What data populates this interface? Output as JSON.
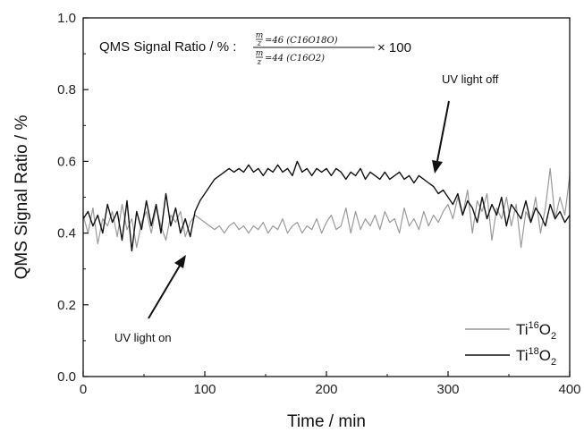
{
  "chart_data": {
    "type": "line",
    "xlabel": "Time / min",
    "ylabel": "QMS Signal Ratio / %",
    "xlim": [
      0,
      400
    ],
    "ylim": [
      0.0,
      1.0
    ],
    "xticks": [
      0,
      100,
      200,
      300,
      400
    ],
    "yticks": [
      0.0,
      0.2,
      0.4,
      0.6,
      0.8,
      1.0
    ],
    "xtick_labels": [
      "0",
      "100",
      "200",
      "300",
      "400"
    ],
    "ytick_labels": [
      "0.0",
      "0.2",
      "0.4",
      "0.6",
      "0.8",
      "1.0"
    ],
    "grid": false,
    "legend_position": "bottom-right",
    "formula": {
      "prefix": "QMS Signal Ratio / % :",
      "num_frac_n": "m",
      "num_frac_d": "z",
      "num_rest": "=46 (C16O18O)",
      "den_frac_n": "m",
      "den_frac_d": "z",
      "den_rest": "=44 (C16O2)",
      "suffix": "× 100"
    },
    "annotations": [
      {
        "text": "UV light on",
        "x": 88,
        "y": 0.34
      },
      {
        "text": "UV light off",
        "x": 289,
        "y": 0.57
      }
    ],
    "series": [
      {
        "name_main": "Ti",
        "name_sup": "16",
        "name_o": "O",
        "name_sub": "2",
        "color": "#9a9a9a",
        "x": [
          0,
          4,
          8,
          12,
          16,
          20,
          24,
          28,
          32,
          36,
          40,
          44,
          48,
          52,
          56,
          60,
          64,
          68,
          72,
          76,
          80,
          84,
          88,
          92,
          96,
          100,
          104,
          108,
          112,
          116,
          120,
          124,
          128,
          132,
          136,
          140,
          144,
          148,
          152,
          156,
          160,
          164,
          168,
          172,
          176,
          180,
          184,
          188,
          192,
          196,
          200,
          204,
          208,
          212,
          216,
          220,
          224,
          228,
          232,
          236,
          240,
          244,
          248,
          252,
          256,
          260,
          264,
          268,
          272,
          276,
          280,
          284,
          288,
          292,
          296,
          300,
          304,
          308,
          312,
          316,
          320,
          324,
          328,
          332,
          336,
          340,
          344,
          348,
          352,
          356,
          360,
          364,
          368,
          372,
          376,
          380,
          384,
          388,
          392,
          396,
          400
        ],
        "y": [
          0.45,
          0.4,
          0.47,
          0.37,
          0.44,
          0.42,
          0.46,
          0.39,
          0.48,
          0.41,
          0.44,
          0.36,
          0.43,
          0.46,
          0.4,
          0.47,
          0.42,
          0.38,
          0.45,
          0.43,
          0.46,
          0.39,
          0.43,
          0.45,
          0.44,
          0.43,
          0.42,
          0.41,
          0.42,
          0.4,
          0.42,
          0.43,
          0.41,
          0.42,
          0.4,
          0.42,
          0.41,
          0.43,
          0.4,
          0.42,
          0.41,
          0.44,
          0.4,
          0.42,
          0.43,
          0.4,
          0.42,
          0.41,
          0.44,
          0.4,
          0.43,
          0.45,
          0.41,
          0.42,
          0.47,
          0.4,
          0.46,
          0.41,
          0.44,
          0.42,
          0.45,
          0.41,
          0.46,
          0.43,
          0.44,
          0.4,
          0.47,
          0.42,
          0.44,
          0.41,
          0.46,
          0.42,
          0.45,
          0.43,
          0.46,
          0.48,
          0.44,
          0.5,
          0.45,
          0.52,
          0.4,
          0.49,
          0.46,
          0.51,
          0.38,
          0.47,
          0.44,
          0.5,
          0.42,
          0.48,
          0.36,
          0.46,
          0.43,
          0.5,
          0.4,
          0.47,
          0.58,
          0.44,
          0.5,
          0.45,
          0.56
        ]
      },
      {
        "name_main": "Ti",
        "name_sup": "18",
        "name_o": "O",
        "name_sub": "2",
        "color": "#111111",
        "x": [
          0,
          4,
          8,
          12,
          16,
          20,
          24,
          28,
          32,
          36,
          40,
          44,
          48,
          52,
          56,
          60,
          64,
          68,
          72,
          76,
          80,
          84,
          88,
          92,
          96,
          100,
          104,
          108,
          112,
          116,
          120,
          124,
          128,
          132,
          136,
          140,
          144,
          148,
          152,
          156,
          160,
          164,
          168,
          172,
          176,
          180,
          184,
          188,
          192,
          196,
          200,
          204,
          208,
          212,
          216,
          220,
          224,
          228,
          232,
          236,
          240,
          244,
          248,
          252,
          256,
          260,
          264,
          268,
          272,
          276,
          280,
          284,
          288,
          292,
          296,
          300,
          304,
          308,
          312,
          316,
          320,
          324,
          328,
          332,
          336,
          340,
          344,
          348,
          352,
          356,
          360,
          364,
          368,
          372,
          376,
          380,
          384,
          388,
          392,
          396,
          400
        ],
        "y": [
          0.44,
          0.46,
          0.42,
          0.45,
          0.4,
          0.48,
          0.43,
          0.46,
          0.38,
          0.49,
          0.35,
          0.46,
          0.41,
          0.49,
          0.42,
          0.48,
          0.4,
          0.51,
          0.42,
          0.47,
          0.4,
          0.44,
          0.39,
          0.46,
          0.49,
          0.51,
          0.53,
          0.55,
          0.56,
          0.57,
          0.58,
          0.57,
          0.58,
          0.57,
          0.59,
          0.57,
          0.58,
          0.56,
          0.58,
          0.57,
          0.59,
          0.57,
          0.58,
          0.56,
          0.6,
          0.57,
          0.58,
          0.56,
          0.58,
          0.57,
          0.58,
          0.56,
          0.58,
          0.57,
          0.55,
          0.57,
          0.56,
          0.58,
          0.55,
          0.57,
          0.56,
          0.55,
          0.57,
          0.55,
          0.56,
          0.57,
          0.55,
          0.56,
          0.54,
          0.56,
          0.55,
          0.54,
          0.53,
          0.51,
          0.52,
          0.5,
          0.48,
          0.51,
          0.45,
          0.49,
          0.47,
          0.43,
          0.5,
          0.44,
          0.48,
          0.45,
          0.5,
          0.42,
          0.48,
          0.46,
          0.44,
          0.49,
          0.43,
          0.47,
          0.45,
          0.42,
          0.48,
          0.44,
          0.46,
          0.43,
          0.45
        ]
      }
    ]
  }
}
